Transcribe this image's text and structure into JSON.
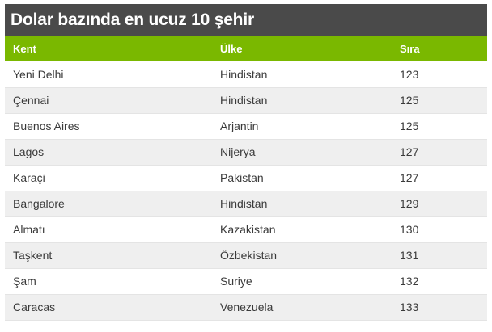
{
  "title": "Dolar bazında en ucuz 10 şehir",
  "columns": [
    "Kent",
    "Ülke",
    "Sıra"
  ],
  "rows": [
    [
      "Yeni Delhi",
      "Hindistan",
      "123"
    ],
    [
      "Çennai",
      "Hindistan",
      "125"
    ],
    [
      "Buenos Aires",
      "Arjantin",
      "125"
    ],
    [
      "Lagos",
      "Nijerya",
      "127"
    ],
    [
      "Karaçi",
      "Pakistan",
      "127"
    ],
    [
      "Bangalore",
      "Hindistan",
      "129"
    ],
    [
      "Almatı",
      "Kazakistan",
      "130"
    ],
    [
      "Taşkent",
      "Özbekistan",
      "131"
    ],
    [
      "Şam",
      "Suriye",
      "132"
    ],
    [
      "Caracas",
      "Venezuela",
      "133"
    ]
  ],
  "colors": {
    "title_background": "#4a4a4a",
    "header_background": "#7ab800",
    "stripe_background": "#efefef"
  }
}
